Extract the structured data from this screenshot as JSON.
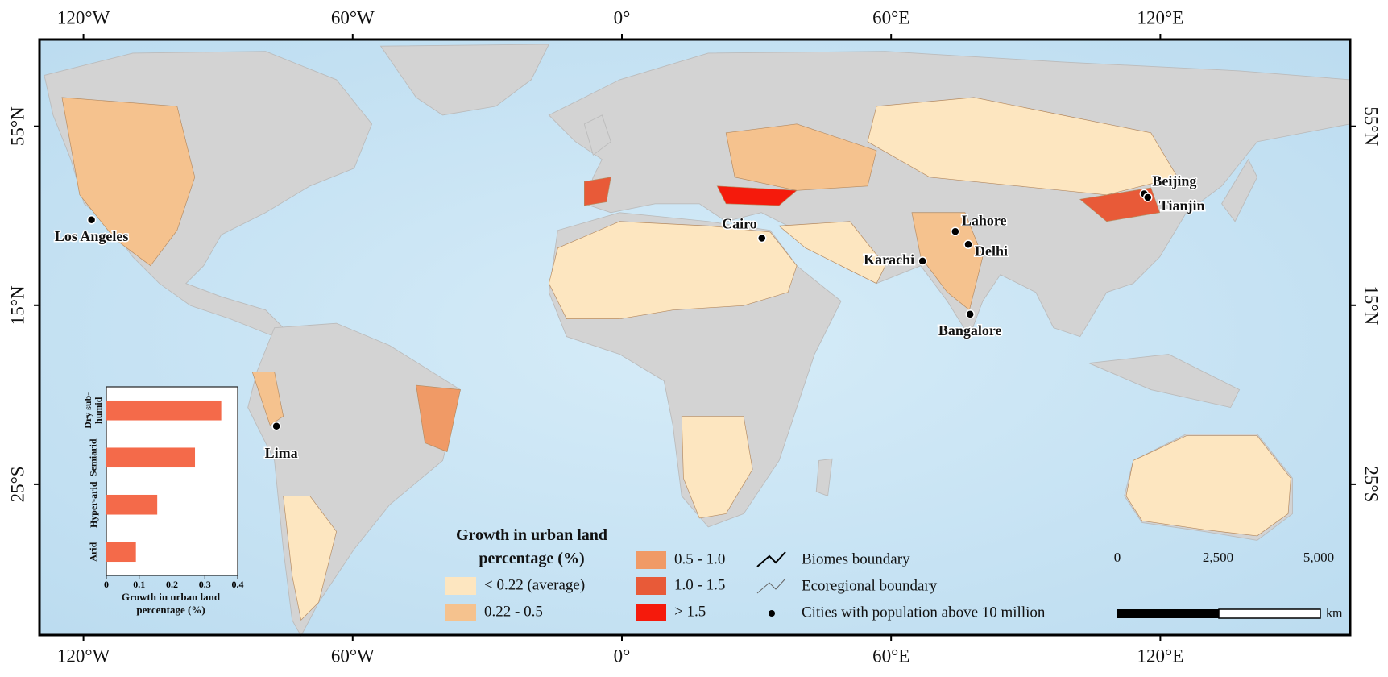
{
  "map": {
    "lon_range": [
      -129.8,
      162.3
    ],
    "lat_range": [
      -58.7,
      74.4
    ],
    "lon_ticks": [
      {
        "value": -120,
        "label": "120°W"
      },
      {
        "value": -60,
        "label": "60°W"
      },
      {
        "value": 0,
        "label": "0°"
      },
      {
        "value": 60,
        "label": "60°E"
      },
      {
        "value": 120,
        "label": "120°E"
      }
    ],
    "lat_ticks": [
      {
        "value": 55,
        "label": "55°N"
      },
      {
        "value": 15,
        "label": "15°N"
      },
      {
        "value": -25,
        "label": "25°S"
      }
    ],
    "cities": [
      {
        "name": "Los Angeles",
        "lon": -118.2,
        "lat": 34.1
      },
      {
        "name": "Lima",
        "lon": -77.0,
        "lat": -12.0
      },
      {
        "name": "Cairo",
        "lon": 31.2,
        "lat": 30.0
      },
      {
        "name": "Karachi",
        "lon": 67.0,
        "lat": 24.9
      },
      {
        "name": "Lahore",
        "lon": 74.3,
        "lat": 31.5
      },
      {
        "name": "Delhi",
        "lon": 77.2,
        "lat": 28.6
      },
      {
        "name": "Bangalore",
        "lon": 77.6,
        "lat": 13.0
      },
      {
        "name": "Beijing",
        "lon": 116.4,
        "lat": 39.9
      },
      {
        "name": "Tianjin",
        "lon": 117.2,
        "lat": 39.1
      }
    ],
    "legend": {
      "title": "Growth in urban land percentage (%)",
      "classes": [
        {
          "label": "< 0.22 (average)",
          "color": "#fde6c0"
        },
        {
          "label": "0.22 - 0.5",
          "color": "#f5c28e"
        },
        {
          "label": "0.5 - 1.0",
          "color": "#f09a66"
        },
        {
          "label": "1.0 - 1.5",
          "color": "#e85a38"
        },
        {
          "label": "> 1.5",
          "color": "#f51a0c"
        }
      ],
      "lines": [
        "Biomes boundary",
        "Ecoregional boundary"
      ],
      "cities_label": "Cities with population above 10 million"
    },
    "scale_bar": {
      "labels": [
        "0",
        "2,500",
        "5,000"
      ],
      "unit": "km"
    }
  },
  "chart_data": {
    "type": "bar",
    "orientation": "horizontal",
    "categories": [
      "Dry sub-humid",
      "Semiarid",
      "Hyper-arid",
      "Arid"
    ],
    "values": [
      0.35,
      0.27,
      0.155,
      0.09
    ],
    "color": "#f46a4a",
    "xlabel": "Growth in urban land percentage (%)",
    "xlim": [
      0,
      0.4
    ],
    "xticks": [
      0,
      0.1,
      0.2,
      0.3,
      0.4
    ]
  }
}
